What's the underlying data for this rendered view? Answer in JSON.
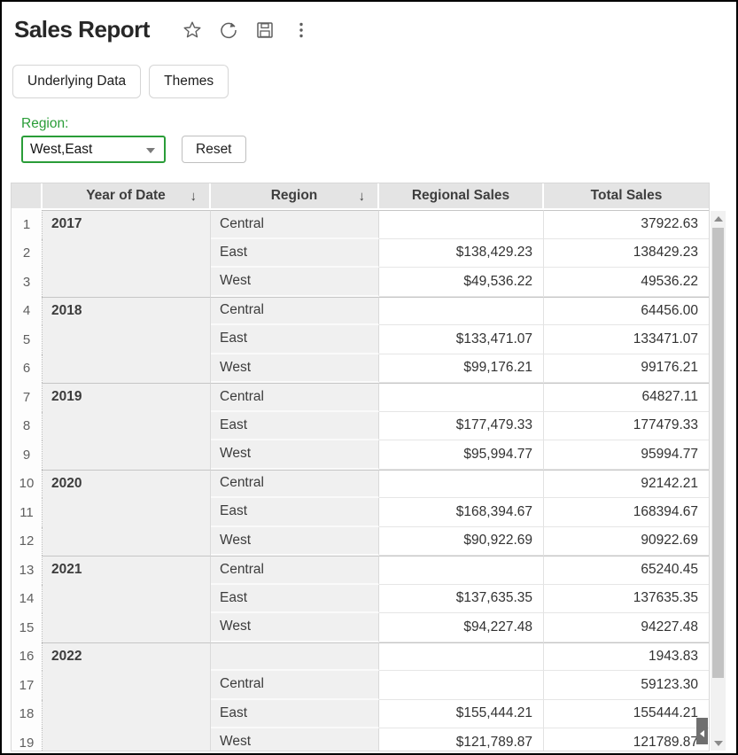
{
  "header": {
    "title": "Sales Report",
    "icons": [
      "favorite-star",
      "refresh",
      "save",
      "more-options"
    ]
  },
  "toolbar": {
    "underlying_data_label": "Underlying Data",
    "themes_label": "Themes"
  },
  "filter": {
    "label": "Region:",
    "value": "West,East",
    "reset_label": "Reset"
  },
  "table": {
    "sort_icon": "↓",
    "columns": [
      {
        "label": "Year of Date",
        "sorted": true
      },
      {
        "label": "Region",
        "sorted": true
      },
      {
        "label": "Regional Sales",
        "sorted": false
      },
      {
        "label": "Total Sales",
        "sorted": false
      }
    ],
    "rows": [
      {
        "n": "1",
        "year": "2017",
        "yearSpan": 3,
        "region": "Central",
        "regional": "",
        "total": "37922.63"
      },
      {
        "n": "2",
        "region": "East",
        "regional": "$138,429.23",
        "total": "138429.23"
      },
      {
        "n": "3",
        "region": "West",
        "regional": "$49,536.22",
        "total": "49536.22"
      },
      {
        "n": "4",
        "year": "2018",
        "yearSpan": 3,
        "region": "Central",
        "regional": "",
        "total": "64456.00"
      },
      {
        "n": "5",
        "region": "East",
        "regional": "$133,471.07",
        "total": "133471.07"
      },
      {
        "n": "6",
        "region": "West",
        "regional": "$99,176.21",
        "total": "99176.21"
      },
      {
        "n": "7",
        "year": "2019",
        "yearSpan": 3,
        "region": "Central",
        "regional": "",
        "total": "64827.11"
      },
      {
        "n": "8",
        "region": "East",
        "regional": "$177,479.33",
        "total": "177479.33"
      },
      {
        "n": "9",
        "region": "West",
        "regional": "$95,994.77",
        "total": "95994.77"
      },
      {
        "n": "10",
        "year": "2020",
        "yearSpan": 3,
        "region": "Central",
        "regional": "",
        "total": "92142.21"
      },
      {
        "n": "11",
        "region": "East",
        "regional": "$168,394.67",
        "total": "168394.67"
      },
      {
        "n": "12",
        "region": "West",
        "regional": "$90,922.69",
        "total": "90922.69"
      },
      {
        "n": "13",
        "year": "2021",
        "yearSpan": 3,
        "region": "Central",
        "regional": "",
        "total": "65240.45"
      },
      {
        "n": "14",
        "region": "East",
        "regional": "$137,635.35",
        "total": "137635.35"
      },
      {
        "n": "15",
        "region": "West",
        "regional": "$94,227.48",
        "total": "94227.48"
      },
      {
        "n": "16",
        "year": "2022",
        "yearSpan": 4,
        "region": "",
        "regional": "",
        "total": "1943.83"
      },
      {
        "n": "17",
        "region": "Central",
        "regional": "",
        "total": "59123.30"
      },
      {
        "n": "18",
        "region": "East",
        "regional": "$155,444.21",
        "total": "155444.21"
      },
      {
        "n": "19",
        "region": "West",
        "regional": "$121,789.87",
        "total": "121789.87"
      }
    ]
  },
  "colors": {
    "accent_green": "#2a9d38",
    "header_bg": "#e4e4e4",
    "dimension_cell_bg": "#f0f0f0",
    "scrollbar_thumb": "#c2c2c2"
  }
}
